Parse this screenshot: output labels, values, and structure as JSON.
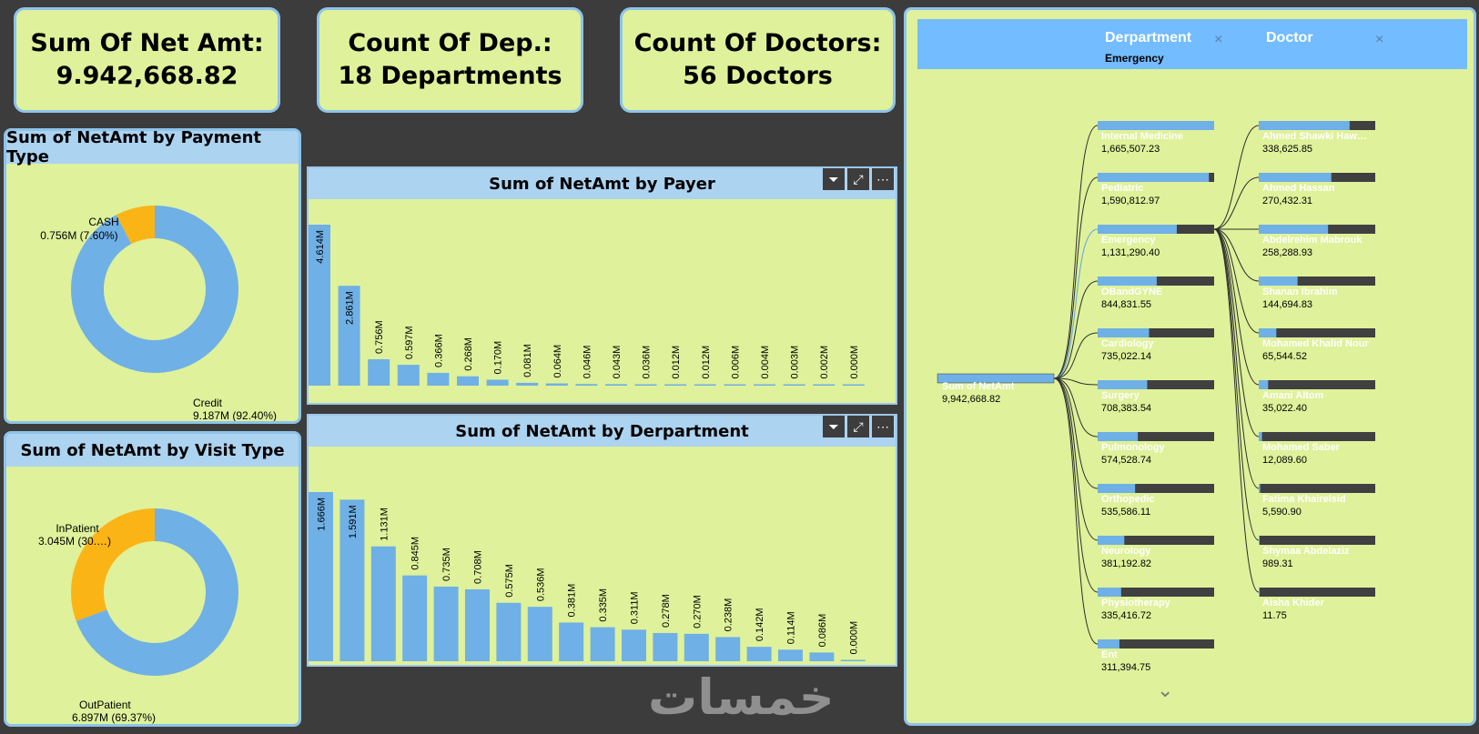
{
  "kpis": [
    {
      "label": "Sum Of Net Amt:",
      "value": "9.942,668.82"
    },
    {
      "label": "Count Of Dep.:",
      "value": "18 Departments"
    },
    {
      "label": "Count Of Doctors:",
      "value": "56 Doctors"
    }
  ],
  "colors": {
    "blue": "#6fb0e6",
    "orange": "#fbb416",
    "panel": "#dff19a",
    "dark": "#404040"
  },
  "payment": {
    "title": "Sum of NetAmt by Payment Type",
    "chart_data": {
      "type": "pie",
      "slices": [
        {
          "name": "CASH",
          "value": 0.756,
          "label": "0.756M (7.60%)",
          "pct": 7.6
        },
        {
          "name": "Credit",
          "value": 9.187,
          "label": "9.187M (92.40%)",
          "pct": 92.4
        }
      ]
    }
  },
  "visit": {
    "title": "Sum of NetAmt by Visit Type",
    "chart_data": {
      "type": "pie",
      "slices": [
        {
          "name": "InPatient",
          "value": 3.045,
          "label": "3.045M (30.…)",
          "pct": 30.63
        },
        {
          "name": "OutPatient",
          "value": 6.897,
          "label": "6.897M (69.37%)",
          "pct": 69.37
        }
      ]
    }
  },
  "payer": {
    "title": "Sum of NetAmt by Payer",
    "chart_data": {
      "type": "bar",
      "values": [
        4.614,
        2.861,
        0.756,
        0.597,
        0.366,
        0.268,
        0.17,
        0.081,
        0.064,
        0.046,
        0.043,
        0.036,
        0.012,
        0.012,
        0.006,
        0.004,
        0.003,
        0.002,
        0.0
      ],
      "labels": [
        "4.614M",
        "2.861M",
        "0.756M",
        "0.597M",
        "0.366M",
        "0.268M",
        "0.170M",
        "0.081M",
        "0.064M",
        "0.046M",
        "0.043M",
        "0.036M",
        "0.012M",
        "0.012M",
        "0.006M",
        "0.004M",
        "0.003M",
        "0.002M",
        "0.000M"
      ]
    }
  },
  "department": {
    "title": "Sum of NetAmt by Derpartment",
    "chart_data": {
      "type": "bar",
      "values": [
        1.666,
        1.591,
        1.131,
        0.845,
        0.735,
        0.708,
        0.575,
        0.536,
        0.381,
        0.335,
        0.311,
        0.278,
        0.27,
        0.238,
        0.142,
        0.114,
        0.086,
        0.0
      ],
      "labels": [
        "1.666M",
        "1.591M",
        "1.131M",
        "0.845M",
        "0.735M",
        "0.708M",
        "0.575M",
        "0.536M",
        "0.381M",
        "0.335M",
        "0.311M",
        "0.278M",
        "0.270M",
        "0.238M",
        "0.142M",
        "0.114M",
        "0.086M",
        "0.000M"
      ]
    }
  },
  "icons": {
    "filter": "filter-icon",
    "focus": "focus-mode-icon",
    "more": "more-options-icon"
  },
  "tree": {
    "col1": "Derpartment",
    "col1_selected": "Emergency",
    "col2": "Doctor",
    "close": "×",
    "expand": "⌄",
    "root": {
      "name": "Sum of NetAmt",
      "value": "9,942,668.82",
      "amount": 9942668.82
    },
    "departments": [
      {
        "name": "Internal Medicine",
        "value": "1,665,507.23",
        "amount": 1665507.23
      },
      {
        "name": "Pediatric",
        "value": "1,590,812.97",
        "amount": 1590812.97
      },
      {
        "name": "Emergency",
        "value": "1,131,290.40",
        "amount": 1131290.4
      },
      {
        "name": "OBandGYNE",
        "value": "844,831.55",
        "amount": 844831.55
      },
      {
        "name": "Cardiology",
        "value": "735,022.14",
        "amount": 735022.14
      },
      {
        "name": "Surgery",
        "value": "708,383.54",
        "amount": 708383.54
      },
      {
        "name": "Pulmonology",
        "value": "574,528.74",
        "amount": 574528.74
      },
      {
        "name": "Orthopedic",
        "value": "535,586.11",
        "amount": 535586.11
      },
      {
        "name": "Neurology",
        "value": "381,192.82",
        "amount": 381192.82
      },
      {
        "name": "Physiotherapy",
        "value": "335,416.72",
        "amount": 335416.72
      },
      {
        "name": "Ent",
        "value": "311,394.75",
        "amount": 311394.75
      }
    ],
    "doctors": [
      {
        "name": "Ahmed Shawki Haw…",
        "value": "338,625.85",
        "amount": 338625.85
      },
      {
        "name": "Ahmed Hassan",
        "value": "270,432.31",
        "amount": 270432.31
      },
      {
        "name": "Abdelrehim Mabrouk",
        "value": "258,288.93",
        "amount": 258288.93
      },
      {
        "name": "Shanan Ibrahim",
        "value": "144,694.83",
        "amount": 144694.83
      },
      {
        "name": "Mohamed Khalid Nour",
        "value": "65,544.52",
        "amount": 65544.52
      },
      {
        "name": "Amani Altom",
        "value": "35,022.40",
        "amount": 35022.4
      },
      {
        "name": "Mohamed Saber",
        "value": "12,089.60",
        "amount": 12089.6
      },
      {
        "name": "Fatima Khairelsid",
        "value": "5,590.90",
        "amount": 5590.9
      },
      {
        "name": "Shymaa Abdelaziz",
        "value": "989.31",
        "amount": 989.31
      },
      {
        "name": "Aisha Khider",
        "value": "11.75",
        "amount": 11.75
      }
    ]
  },
  "watermark": "خمسات"
}
